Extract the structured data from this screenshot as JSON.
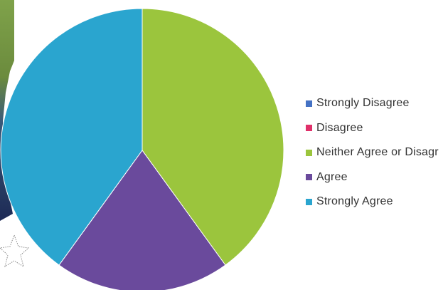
{
  "chart_data": {
    "type": "pie",
    "categories": [
      "Strongly Disagree",
      "Disagree",
      "Neither Agree or Disagree",
      "Agree",
      "Strongly Agree"
    ],
    "values": [
      0,
      0,
      40,
      20,
      40
    ],
    "colors": [
      "#4472C4",
      "#E0306A",
      "#9BC53D",
      "#6A4A9C",
      "#2AA5CF"
    ],
    "legend": {
      "position": "right"
    }
  },
  "legend_items": [
    {
      "label": "Strongly Disagree",
      "color": "#4472C4"
    },
    {
      "label": "Disagree",
      "color": "#E0306A"
    },
    {
      "label": "Neither Agree or Disagr",
      "color": "#9BC53D"
    },
    {
      "label": "Agree",
      "color": "#6A4A9C"
    },
    {
      "label": "Strongly Agree",
      "color": "#2AA5CF"
    }
  ],
  "background_icons": [
    "landscape-photo-fragment",
    "star-outline-icon"
  ]
}
